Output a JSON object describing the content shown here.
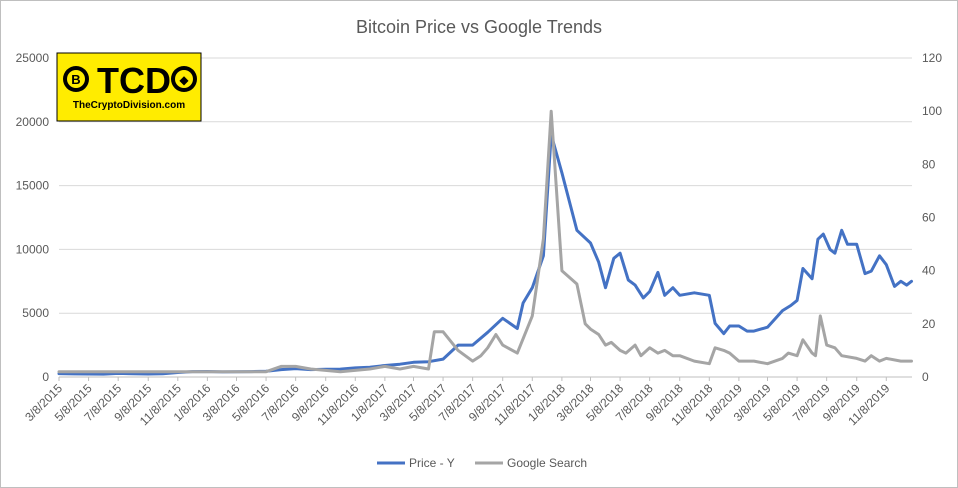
{
  "chart_data": {
    "type": "line",
    "title": "Bitcoin Price vs Google Trends",
    "xlabel": "",
    "ylabel": "",
    "y_left_lim": [
      0,
      25000
    ],
    "y_left_ticks": [
      "0",
      "5000",
      "10000",
      "15000",
      "20000",
      "25000"
    ],
    "y_right_lim": [
      0,
      120
    ],
    "y_right_ticks": [
      "0",
      "20",
      "40",
      "60",
      "80",
      "100",
      "120"
    ],
    "x_tick_labels": [
      "3/8/2015",
      "5/8/2015",
      "7/8/2015",
      "9/8/2015",
      "11/8/2015",
      "1/8/2016",
      "3/8/2016",
      "5/8/2016",
      "7/8/2016",
      "9/8/2016",
      "11/8/2016",
      "1/8/2017",
      "3/8/2017",
      "5/8/2017",
      "7/8/2017",
      "9/8/2017",
      "11/8/2017",
      "1/8/2018",
      "3/8/2018",
      "5/8/2018",
      "7/8/2018",
      "9/8/2018",
      "11/8/2018",
      "1/8/2019",
      "3/8/2019",
      "5/8/2019",
      "7/8/2019",
      "9/8/2019",
      "11/8/2019"
    ],
    "grid": true,
    "legend_position": "bottom",
    "series": [
      {
        "name": "Price - Y",
        "axis": "left",
        "color": "#4472c4",
        "points": [
          [
            "2015-03-08",
            270
          ],
          [
            "2015-04-08",
            240
          ],
          [
            "2015-05-08",
            235
          ],
          [
            "2015-06-08",
            230
          ],
          [
            "2015-07-08",
            280
          ],
          [
            "2015-08-08",
            260
          ],
          [
            "2015-09-08",
            235
          ],
          [
            "2015-10-08",
            250
          ],
          [
            "2015-11-08",
            350
          ],
          [
            "2015-12-08",
            420
          ],
          [
            "2016-01-08",
            430
          ],
          [
            "2016-02-08",
            400
          ],
          [
            "2016-03-08",
            410
          ],
          [
            "2016-04-08",
            420
          ],
          [
            "2016-05-08",
            450
          ],
          [
            "2016-06-08",
            580
          ],
          [
            "2016-07-08",
            660
          ],
          [
            "2016-08-08",
            580
          ],
          [
            "2016-09-08",
            610
          ],
          [
            "2016-10-08",
            620
          ],
          [
            "2016-11-08",
            710
          ],
          [
            "2016-12-08",
            770
          ],
          [
            "2017-01-08",
            900
          ],
          [
            "2017-02-08",
            1000
          ],
          [
            "2017-03-08",
            1150
          ],
          [
            "2017-04-08",
            1200
          ],
          [
            "2017-05-08",
            1400
          ],
          [
            "2017-06-08",
            2500
          ],
          [
            "2017-07-08",
            2500
          ],
          [
            "2017-08-08",
            3500
          ],
          [
            "2017-09-08",
            4600
          ],
          [
            "2017-10-08",
            3800
          ],
          [
            "2017-10-20",
            5800
          ],
          [
            "2017-11-08",
            7000
          ],
          [
            "2017-12-01",
            9500
          ],
          [
            "2017-12-17",
            19000
          ],
          [
            "2018-01-08",
            16000
          ],
          [
            "2018-02-08",
            11500
          ],
          [
            "2018-03-08",
            10500
          ],
          [
            "2018-03-25",
            9000
          ],
          [
            "2018-04-08",
            7000
          ],
          [
            "2018-04-25",
            9300
          ],
          [
            "2018-05-08",
            9700
          ],
          [
            "2018-05-25",
            7600
          ],
          [
            "2018-06-08",
            7200
          ],
          [
            "2018-06-25",
            6200
          ],
          [
            "2018-07-08",
            6700
          ],
          [
            "2018-07-25",
            8200
          ],
          [
            "2018-08-08",
            6400
          ],
          [
            "2018-08-25",
            7000
          ],
          [
            "2018-09-08",
            6400
          ],
          [
            "2018-10-08",
            6600
          ],
          [
            "2018-11-08",
            6400
          ],
          [
            "2018-11-20",
            4200
          ],
          [
            "2018-12-08",
            3400
          ],
          [
            "2018-12-20",
            4000
          ],
          [
            "2019-01-08",
            4000
          ],
          [
            "2019-01-25",
            3600
          ],
          [
            "2019-02-08",
            3600
          ],
          [
            "2019-03-08",
            3900
          ],
          [
            "2019-04-08",
            5200
          ],
          [
            "2019-04-25",
            5600
          ],
          [
            "2019-05-08",
            6000
          ],
          [
            "2019-05-20",
            8500
          ],
          [
            "2019-06-08",
            7700
          ],
          [
            "2019-06-20",
            10800
          ],
          [
            "2019-07-01",
            11200
          ],
          [
            "2019-07-15",
            10000
          ],
          [
            "2019-07-25",
            9700
          ],
          [
            "2019-08-08",
            11500
          ],
          [
            "2019-08-20",
            10400
          ],
          [
            "2019-09-08",
            10400
          ],
          [
            "2019-09-25",
            8100
          ],
          [
            "2019-10-08",
            8300
          ],
          [
            "2019-10-25",
            9500
          ],
          [
            "2019-11-08",
            8800
          ],
          [
            "2019-11-25",
            7100
          ],
          [
            "2019-12-08",
            7500
          ],
          [
            "2019-12-20",
            7200
          ],
          [
            "2019-12-30",
            7500
          ]
        ]
      },
      {
        "name": "Google Search",
        "axis": "right",
        "color": "#a5a5a5",
        "points": [
          [
            "2015-03-08",
            2
          ],
          [
            "2015-05-08",
            2
          ],
          [
            "2015-07-08",
            2
          ],
          [
            "2015-09-08",
            2
          ],
          [
            "2015-11-08",
            2
          ],
          [
            "2016-01-08",
            2
          ],
          [
            "2016-03-08",
            2
          ],
          [
            "2016-05-08",
            2
          ],
          [
            "2016-06-08",
            4
          ],
          [
            "2016-07-08",
            4
          ],
          [
            "2016-08-08",
            3
          ],
          [
            "2016-10-08",
            2
          ],
          [
            "2016-12-08",
            3
          ],
          [
            "2017-01-08",
            4
          ],
          [
            "2017-02-08",
            3
          ],
          [
            "2017-03-08",
            4
          ],
          [
            "2017-04-08",
            3
          ],
          [
            "2017-04-20",
            17
          ],
          [
            "2017-05-08",
            17
          ],
          [
            "2017-06-08",
            10
          ],
          [
            "2017-07-08",
            6
          ],
          [
            "2017-07-25",
            8
          ],
          [
            "2017-08-08",
            11
          ],
          [
            "2017-08-25",
            16
          ],
          [
            "2017-09-08",
            12
          ],
          [
            "2017-10-08",
            9
          ],
          [
            "2017-11-08",
            23
          ],
          [
            "2017-12-01",
            52
          ],
          [
            "2017-12-17",
            100
          ],
          [
            "2018-01-08",
            40
          ],
          [
            "2018-02-08",
            35
          ],
          [
            "2018-02-25",
            20
          ],
          [
            "2018-03-08",
            18
          ],
          [
            "2018-03-25",
            16
          ],
          [
            "2018-04-08",
            12
          ],
          [
            "2018-04-20",
            13
          ],
          [
            "2018-05-08",
            10
          ],
          [
            "2018-05-20",
            9
          ],
          [
            "2018-06-08",
            12
          ],
          [
            "2018-06-20",
            8
          ],
          [
            "2018-07-08",
            11
          ],
          [
            "2018-07-25",
            9
          ],
          [
            "2018-08-08",
            10
          ],
          [
            "2018-08-25",
            8
          ],
          [
            "2018-09-08",
            8
          ],
          [
            "2018-10-08",
            6
          ],
          [
            "2018-11-08",
            5
          ],
          [
            "2018-11-20",
            11
          ],
          [
            "2018-12-08",
            10
          ],
          [
            "2018-12-20",
            9
          ],
          [
            "2019-01-08",
            6
          ],
          [
            "2019-02-08",
            6
          ],
          [
            "2019-03-08",
            5
          ],
          [
            "2019-04-08",
            7
          ],
          [
            "2019-04-20",
            9
          ],
          [
            "2019-05-08",
            8
          ],
          [
            "2019-05-20",
            14
          ],
          [
            "2019-06-08",
            9
          ],
          [
            "2019-06-15",
            8
          ],
          [
            "2019-06-25",
            23
          ],
          [
            "2019-07-08",
            12
          ],
          [
            "2019-07-25",
            11
          ],
          [
            "2019-08-08",
            8
          ],
          [
            "2019-09-08",
            7
          ],
          [
            "2019-09-25",
            6
          ],
          [
            "2019-10-08",
            8
          ],
          [
            "2019-10-25",
            6
          ],
          [
            "2019-11-08",
            7
          ],
          [
            "2019-12-08",
            6
          ],
          [
            "2019-12-30",
            6
          ]
        ]
      }
    ]
  },
  "logo": {
    "letters": "TCD",
    "coin_left_glyph": "B",
    "coin_right_glyph": "◆",
    "tagline": "TheCryptoDivision.com",
    "bg_color": "#ffec00"
  },
  "colors": {
    "price": "#4472c4",
    "google": "#a5a5a5",
    "grid": "#d9d9d9",
    "text": "#595959"
  }
}
